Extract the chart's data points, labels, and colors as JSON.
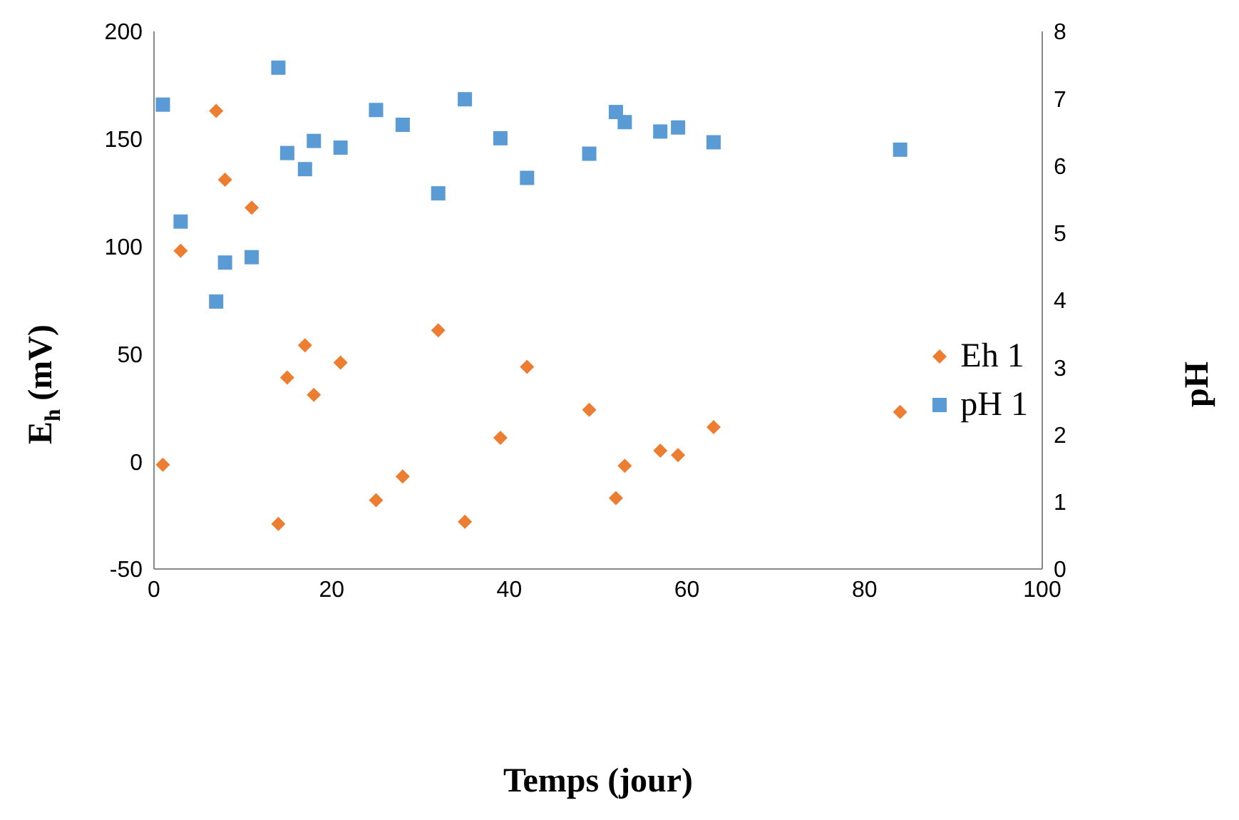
{
  "chart_data": {
    "type": "scatter",
    "xlabel": "Temps (jour)",
    "ylabel": "E$_{h}$ (mV)",
    "y2label": "pH",
    "xlim": [
      0,
      100
    ],
    "xticks": [
      0,
      20,
      40,
      60,
      80,
      100
    ],
    "ylim": [
      -50,
      200
    ],
    "yticks": [
      -50,
      0,
      50,
      100,
      150,
      200
    ],
    "y2lim": [
      0,
      8
    ],
    "y2ticks": [
      0,
      1,
      2,
      3,
      4,
      5,
      6,
      7,
      8
    ],
    "grid": false,
    "legend": "right",
    "series": [
      {
        "name": "Eh 1",
        "color": "#ed7d31",
        "marker": "diamond",
        "x": [
          1,
          3,
          7,
          8,
          11,
          14,
          15,
          17,
          18,
          21,
          25,
          28,
          32,
          35,
          39,
          42,
          49,
          52,
          53,
          57,
          59,
          63,
          84
        ],
        "values": [
          -1.5,
          98,
          163,
          131,
          118,
          -29,
          39,
          54,
          31,
          46,
          -18,
          -7,
          61,
          -28,
          11,
          44,
          24,
          -17,
          -2,
          5,
          3,
          16,
          23
        ]
      },
      {
        "name": "pH 1",
        "color": "#5b9bd5",
        "marker": "square",
        "axis": "y2",
        "x": [
          1,
          3,
          7,
          8,
          11,
          14,
          15,
          17,
          18,
          21,
          25,
          28,
          32,
          35,
          39,
          42,
          49,
          52,
          53,
          57,
          59,
          63,
          84
        ],
        "values": [
          6.91,
          5.17,
          3.98,
          4.56,
          4.64,
          7.46,
          6.19,
          5.95,
          6.37,
          6.27,
          6.83,
          6.61,
          5.59,
          6.99,
          6.41,
          5.82,
          6.18,
          6.8,
          6.65,
          6.51,
          6.57,
          6.35,
          6.24
        ]
      }
    ]
  }
}
